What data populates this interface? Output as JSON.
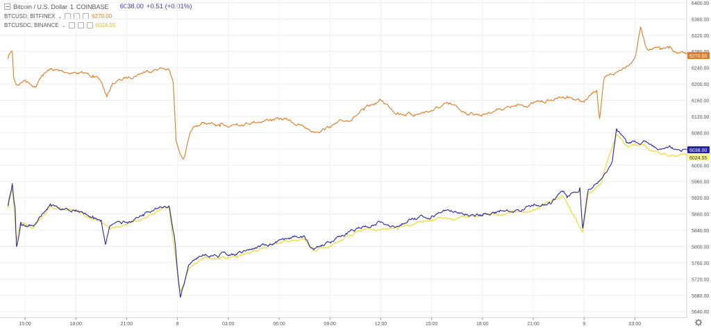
{
  "legend": {
    "main_symbol": "Bitcoin / U.S. Dollar",
    "main_interval": "1",
    "main_exchange": "COINBASE",
    "main_price": "6038.00",
    "main_change": "+0.51 (+0.01%)",
    "compare_1": {
      "symbol": "BTCUSD, BITFINEX",
      "value": "6270.00"
    },
    "compare_2": {
      "symbol": "BTCUSDC, BINANCE",
      "value": "6024.55"
    }
  },
  "chart_data": {
    "type": "line",
    "title": "Bitcoin / U.S. Dollar",
    "xlabel": "",
    "ylabel": "",
    "x_ticks": [
      "15:00",
      "18:00",
      "21:00",
      "8",
      "03:00",
      "06:00",
      "09:00",
      "12:00",
      "15:00",
      "18:00",
      "21:00",
      "9",
      "03:00"
    ],
    "y_ticks": [
      "5640.00",
      "5680.00",
      "5720.00",
      "5760.00",
      "5800.00",
      "5840.00",
      "5880.00",
      "5920.00",
      "5960.00",
      "6000.00",
      "6040.00",
      "6080.00",
      "6120.00",
      "6160.00",
      "6200.00",
      "6240.00",
      "6280.00",
      "6320.00",
      "6360.00",
      "6400.00"
    ],
    "ylim": [
      5625,
      6405
    ],
    "grid": true,
    "legend_position": "top-left",
    "price_labels": [
      {
        "series": "BTCUSD, BITFINEX",
        "value": "6270.00",
        "bg": "#e07b24"
      },
      {
        "series": "Bitcoin / U.S. Dollar",
        "value": "6038.00",
        "bg": "#2323a8"
      },
      {
        "series": "BTCUSDC, BINANCE",
        "value": "6024.55",
        "bg": "#fff59d"
      }
    ],
    "series": [
      {
        "name": "BTCUSD, BITFINEX",
        "color": "#e07b24",
        "anchors": [
          [
            "14:00",
            6262
          ],
          [
            "14:05",
            6274
          ],
          [
            "14:15",
            6280
          ],
          [
            "14:20",
            6215
          ],
          [
            "14:30",
            6198
          ],
          [
            "15:00",
            6210
          ],
          [
            "15:40",
            6195
          ],
          [
            "16:00",
            6222
          ],
          [
            "16:30",
            6236
          ],
          [
            "17:00",
            6232
          ],
          [
            "18:00",
            6228
          ],
          [
            "19:00",
            6222
          ],
          [
            "19:30",
            6205
          ],
          [
            "19:50",
            6168
          ],
          [
            "20:10",
            6202
          ],
          [
            "21:00",
            6215
          ],
          [
            "22:00",
            6230
          ],
          [
            "23:00",
            6240
          ],
          [
            "23:30",
            6235
          ],
          [
            "23:45",
            6202
          ],
          [
            "23:55",
            6060
          ],
          [
            "24:20",
            6015
          ],
          [
            "24:50",
            6085
          ],
          [
            "25:30",
            6105
          ],
          [
            "26:30",
            6095
          ],
          [
            "27:30",
            6103
          ],
          [
            "28:30",
            6108
          ],
          [
            "29:30",
            6113
          ],
          [
            "30:30",
            6112
          ],
          [
            "31:40",
            6090
          ],
          [
            "32:00",
            6083
          ],
          [
            "33:00",
            6095
          ],
          [
            "34:00",
            6110
          ],
          [
            "35:00",
            6135
          ],
          [
            "36:00",
            6160
          ],
          [
            "37:00",
            6130
          ],
          [
            "38:00",
            6125
          ],
          [
            "39:00",
            6135
          ],
          [
            "40:00",
            6150
          ],
          [
            "41:00",
            6130
          ],
          [
            "42:00",
            6125
          ],
          [
            "43:00",
            6140
          ],
          [
            "44:00",
            6145
          ],
          [
            "45:00",
            6152
          ],
          [
            "46:00",
            6160
          ],
          [
            "47:00",
            6170
          ],
          [
            "48:00",
            6155
          ],
          [
            "48:45",
            6185
          ],
          [
            "48:55",
            6115
          ],
          [
            "49:10",
            6210
          ],
          [
            "50:00",
            6230
          ],
          [
            "51:00",
            6265
          ],
          [
            "51:20",
            6340
          ],
          [
            "51:40",
            6290
          ],
          [
            "52:30",
            6285
          ],
          [
            "53:00",
            6288
          ],
          [
            "53:30",
            6275
          ],
          [
            "54:30",
            6270
          ]
        ]
      },
      {
        "name": "Bitcoin / U.S. Dollar",
        "color": "#2323a8",
        "anchors": [
          [
            "14:00",
            5900
          ],
          [
            "14:15",
            5955
          ],
          [
            "14:25",
            5895
          ],
          [
            "14:30",
            5800
          ],
          [
            "14:45",
            5860
          ],
          [
            "15:30",
            5850
          ],
          [
            "16:00",
            5880
          ],
          [
            "16:30",
            5905
          ],
          [
            "17:00",
            5895
          ],
          [
            "18:00",
            5890
          ],
          [
            "19:00",
            5875
          ],
          [
            "19:30",
            5865
          ],
          [
            "19:45",
            5805
          ],
          [
            "20:00",
            5850
          ],
          [
            "21:00",
            5860
          ],
          [
            "22:00",
            5875
          ],
          [
            "23:00",
            5898
          ],
          [
            "23:30",
            5900
          ],
          [
            "23:50",
            5820
          ],
          [
            "24:00",
            5740
          ],
          [
            "24:10",
            5675
          ],
          [
            "24:40",
            5755
          ],
          [
            "25:30",
            5780
          ],
          [
            "26:30",
            5780
          ],
          [
            "27:30",
            5780
          ],
          [
            "28:30",
            5795
          ],
          [
            "29:30",
            5805
          ],
          [
            "30:30",
            5820
          ],
          [
            "31:30",
            5825
          ],
          [
            "32:00",
            5795
          ],
          [
            "33:00",
            5810
          ],
          [
            "34:00",
            5830
          ],
          [
            "35:00",
            5850
          ],
          [
            "36:00",
            5860
          ],
          [
            "37:00",
            5850
          ],
          [
            "38:00",
            5870
          ],
          [
            "39:00",
            5875
          ],
          [
            "40:00",
            5890
          ],
          [
            "41:00",
            5880
          ],
          [
            "42:00",
            5875
          ],
          [
            "43:00",
            5885
          ],
          [
            "44:00",
            5890
          ],
          [
            "45:00",
            5900
          ],
          [
            "46:00",
            5905
          ],
          [
            "46:45",
            5935
          ],
          [
            "47:00",
            5920
          ],
          [
            "47:45",
            5945
          ],
          [
            "47:55",
            5845
          ],
          [
            "48:15",
            5940
          ],
          [
            "49:00",
            5965
          ],
          [
            "49:40",
            6010
          ],
          [
            "49:55",
            6090
          ],
          [
            "50:30",
            6055
          ],
          [
            "51:30",
            6060
          ],
          [
            "52:00",
            6048
          ],
          [
            "52:30",
            6040
          ],
          [
            "53:00",
            6045
          ],
          [
            "53:30",
            6038
          ],
          [
            "54:30",
            6038
          ]
        ]
      },
      {
        "name": "BTCUSDC, BINANCE",
        "color": "#f3dd4b",
        "anchors": [
          [
            "14:00",
            5895
          ],
          [
            "14:15",
            5945
          ],
          [
            "14:30",
            5815
          ],
          [
            "14:45",
            5855
          ],
          [
            "15:30",
            5845
          ],
          [
            "16:30",
            5900
          ],
          [
            "18:00",
            5885
          ],
          [
            "19:30",
            5860
          ],
          [
            "20:00",
            5845
          ],
          [
            "21:00",
            5852
          ],
          [
            "22:00",
            5868
          ],
          [
            "23:00",
            5892
          ],
          [
            "23:30",
            5895
          ],
          [
            "24:10",
            5690
          ],
          [
            "24:40",
            5745
          ],
          [
            "25:30",
            5772
          ],
          [
            "26:30",
            5770
          ],
          [
            "27:30",
            5772
          ],
          [
            "28:30",
            5788
          ],
          [
            "30:30",
            5812
          ],
          [
            "31:30",
            5818
          ],
          [
            "32:00",
            5790
          ],
          [
            "33:00",
            5802
          ],
          [
            "35:00",
            5843
          ],
          [
            "37:00",
            5842
          ],
          [
            "39:00",
            5868
          ],
          [
            "41:00",
            5872
          ],
          [
            "43:00",
            5878
          ],
          [
            "45:00",
            5892
          ],
          [
            "46:45",
            5925
          ],
          [
            "47:55",
            5835
          ],
          [
            "48:15",
            5930
          ],
          [
            "49:00",
            5955
          ],
          [
            "49:55",
            6075
          ],
          [
            "50:30",
            6048
          ],
          [
            "51:30",
            6050
          ],
          [
            "52:30",
            6028
          ],
          [
            "53:30",
            6024
          ],
          [
            "54:30",
            6024
          ]
        ]
      }
    ]
  }
}
